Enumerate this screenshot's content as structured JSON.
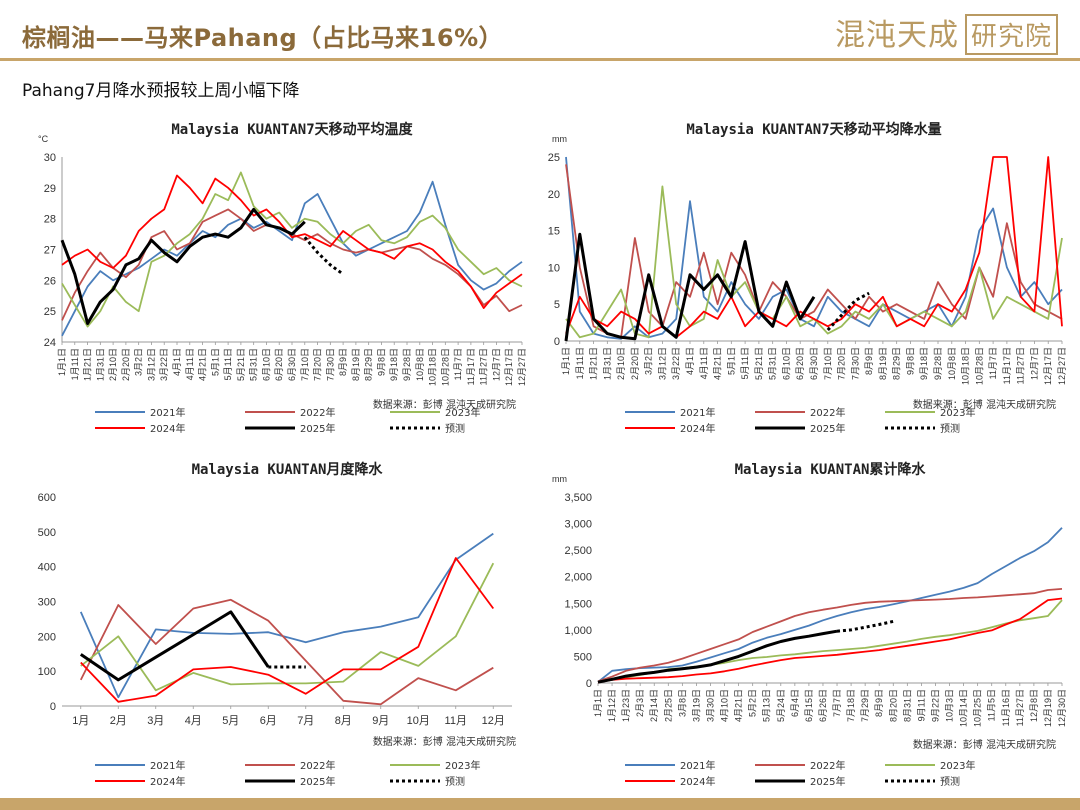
{
  "header": {
    "title": "棕榈油——马来Pahang（占比马来16%）",
    "logo_text": "混沌天成",
    "logo_box": "研究院",
    "subtitle": "Pahang7月降水预报较上周小幅下降"
  },
  "colors": {
    "2021年": "#4a7ebb",
    "2022年": "#c0504d",
    "2023年": "#9bbb59",
    "2024年": "#ff0000",
    "2025年": "#000000",
    "预测": "#000000",
    "gold": "#c8a56a"
  },
  "chart_data": [
    {
      "id": "temp",
      "type": "line",
      "title": "Malaysia KUANTAN7天移动平均温度",
      "unit_label": "°C",
      "ylim": [
        24,
        30
      ],
      "yticks": [
        24,
        25,
        26,
        27,
        28,
        29,
        30
      ],
      "x_ticks": [
        "1月1日",
        "1月11日",
        "1月21日",
        "1月31日",
        "2月10日",
        "2月20日",
        "3月2日",
        "3月12日",
        "3月22日",
        "4月1日",
        "4月11日",
        "4月21日",
        "5月1日",
        "5月11日",
        "5月21日",
        "5月31日",
        "6月10日",
        "6月20日",
        "6月30日",
        "7月10日",
        "7月20日",
        "7月30日",
        "8月9日",
        "8月19日",
        "8月29日",
        "9月8日",
        "9月18日",
        "9月28日",
        "10月8日",
        "10月18日",
        "10月28日",
        "11月7日",
        "11月17日",
        "11月27日",
        "12月7日",
        "12月17日",
        "12月27日"
      ],
      "source": "数据来源：彭博  混沌天成研究院",
      "series": [
        {
          "name": "2021年",
          "values": [
            24.2,
            25.0,
            25.8,
            26.3,
            26.0,
            26.2,
            26.4,
            26.7,
            27.0,
            26.8,
            27.2,
            27.6,
            27.4,
            27.8,
            28.0,
            27.7,
            27.9,
            27.6,
            27.3,
            28.5,
            28.8,
            28.0,
            27.2,
            26.8,
            27.0,
            27.2,
            27.4,
            27.6,
            28.2,
            29.2,
            27.8,
            26.5,
            26.0,
            25.7,
            25.9,
            26.3,
            26.6
          ]
        },
        {
          "name": "2022年",
          "values": [
            24.7,
            25.6,
            26.3,
            26.9,
            26.4,
            26.1,
            26.5,
            27.4,
            27.6,
            27.0,
            27.2,
            27.9,
            28.1,
            28.3,
            28.0,
            27.6,
            27.8,
            27.7,
            27.5,
            27.3,
            27.5,
            27.2,
            27.0,
            26.9,
            27.0,
            26.9,
            27.0,
            27.1,
            27.0,
            26.7,
            26.5,
            26.2,
            25.8,
            25.2,
            25.5,
            25.0,
            25.2
          ]
        },
        {
          "name": "2023年",
          "values": [
            25.9,
            25.2,
            24.5,
            25.0,
            25.8,
            25.3,
            25.0,
            26.6,
            26.8,
            27.2,
            27.5,
            28.0,
            28.8,
            28.6,
            29.5,
            28.4,
            28.0,
            28.2,
            27.7,
            28.0,
            27.9,
            27.5,
            27.2,
            27.6,
            27.8,
            27.3,
            27.2,
            27.4,
            27.9,
            28.1,
            27.7,
            27.0,
            26.6,
            26.2,
            26.4,
            26.0,
            25.8
          ]
        },
        {
          "name": "2024年",
          "values": [
            26.5,
            26.8,
            27.0,
            26.6,
            26.4,
            26.8,
            27.6,
            28.0,
            28.3,
            29.4,
            29.0,
            28.5,
            29.3,
            29.0,
            28.6,
            28.1,
            28.3,
            27.9,
            27.4,
            27.5,
            27.3,
            27.1,
            27.6,
            27.3,
            27.0,
            26.9,
            26.7,
            27.1,
            27.2,
            27.0,
            26.6,
            26.3,
            25.8,
            25.1,
            25.6,
            25.9,
            26.2
          ]
        },
        {
          "name": "2025年",
          "values": [
            27.3,
            26.2,
            24.6,
            25.3,
            25.7,
            26.5,
            26.7,
            27.3,
            26.9,
            26.6,
            27.1,
            27.4,
            27.5,
            27.4,
            27.7,
            28.3,
            27.8,
            27.7,
            27.5,
            27.9,
            null,
            null,
            null,
            null,
            null,
            null,
            null,
            null,
            null,
            null,
            null,
            null,
            null,
            null,
            null,
            null,
            null
          ]
        },
        {
          "name": "预测",
          "dashed": true,
          "values": [
            null,
            null,
            null,
            null,
            null,
            null,
            null,
            null,
            null,
            null,
            null,
            null,
            null,
            null,
            null,
            null,
            null,
            null,
            null,
            27.4,
            26.9,
            26.5,
            26.2,
            null,
            null,
            null,
            null,
            null,
            null,
            null,
            null,
            null,
            null,
            null,
            null,
            null,
            null
          ]
        }
      ]
    },
    {
      "id": "rain7",
      "type": "line",
      "title": "Malaysia KUANTAN7天移动平均降水量",
      "unit_label": "mm",
      "ylim": [
        0,
        25
      ],
      "yticks": [
        0,
        5,
        10,
        15,
        20,
        25
      ],
      "x_ticks": [
        "1月1日",
        "1月11日",
        "1月21日",
        "1月31日",
        "2月10日",
        "2月20日",
        "3月2日",
        "3月12日",
        "3月22日",
        "4月1日",
        "4月11日",
        "4月21日",
        "5月1日",
        "5月11日",
        "5月21日",
        "5月31日",
        "6月10日",
        "6月20日",
        "6月30日",
        "7月10日",
        "7月20日",
        "7月30日",
        "8月9日",
        "8月19日",
        "8月29日",
        "9月8日",
        "9月18日",
        "9月28日",
        "10月8日",
        "10月18日",
        "10月28日",
        "11月7日",
        "11月17日",
        "11月27日",
        "12月7日",
        "12月17日",
        "12月27日"
      ],
      "source": "数据来源：彭博  混沌天成研究院",
      "series": [
        {
          "name": "2021年",
          "values": [
            25,
            4,
            1,
            0.5,
            0.3,
            2,
            0.5,
            1,
            3,
            19,
            6,
            4,
            8,
            5,
            3,
            6,
            7,
            3,
            2,
            6,
            4,
            3,
            2,
            5,
            4,
            3,
            4,
            5,
            2,
            6,
            15,
            18,
            10,
            6,
            8,
            5,
            7
          ]
        },
        {
          "name": "2022年",
          "values": [
            24,
            10,
            2,
            1,
            0.5,
            14,
            4,
            2,
            8,
            6,
            12,
            5,
            12,
            9,
            4,
            8,
            6,
            3,
            4,
            7,
            5,
            3,
            6,
            4,
            5,
            4,
            3,
            8,
            5,
            3,
            10,
            6,
            16,
            8,
            5,
            4,
            3
          ]
        },
        {
          "name": "2023年",
          "values": [
            3,
            0.5,
            1,
            4,
            7,
            1,
            0.5,
            21,
            5,
            2,
            3,
            11,
            6,
            8,
            4,
            3,
            6,
            2,
            3,
            1,
            2,
            4,
            3,
            5,
            2,
            3,
            4,
            3,
            2,
            4,
            10,
            3,
            6,
            5,
            4,
            3,
            14
          ]
        },
        {
          "name": "2024年",
          "values": [
            1,
            6,
            3,
            2,
            4,
            3,
            1,
            2,
            0.5,
            2,
            4,
            3,
            6,
            2,
            4,
            3,
            2,
            4,
            3,
            2,
            3,
            5,
            4,
            6,
            2,
            3,
            2,
            5,
            4,
            7,
            12,
            25,
            25,
            6,
            4,
            25,
            2
          ]
        },
        {
          "name": "2025年",
          "values": [
            0,
            14.5,
            3,
            1,
            0.5,
            0.3,
            9,
            2,
            0.5,
            9,
            7,
            9,
            6,
            13.5,
            4,
            2,
            8,
            3,
            6,
            null,
            null,
            null,
            null,
            null,
            null,
            null,
            null,
            null,
            null,
            null,
            null,
            null,
            null,
            null,
            null,
            null,
            null
          ]
        },
        {
          "name": "预测",
          "dashed": true,
          "values": [
            null,
            null,
            null,
            null,
            null,
            null,
            null,
            null,
            null,
            null,
            null,
            null,
            null,
            null,
            null,
            null,
            null,
            null,
            null,
            1.5,
            3.5,
            5.5,
            6.5,
            null,
            null,
            null,
            null,
            null,
            null,
            null,
            null,
            null,
            null,
            null,
            null,
            null,
            null
          ]
        }
      ]
    },
    {
      "id": "monthly",
      "type": "line",
      "title": "Malaysia KUANTAN月度降水",
      "ylim": [
        0,
        600
      ],
      "yticks": [
        0,
        100,
        200,
        300,
        400,
        500,
        600
      ],
      "x_ticks": [
        "1月",
        "2月",
        "3月",
        "4月",
        "5月",
        "6月",
        "7月",
        "8月",
        "9月",
        "10月",
        "11月",
        "12月"
      ],
      "source": "数据来源：彭博  混沌天成研究院",
      "series": [
        {
          "name": "2021年",
          "values": [
            270,
            25,
            220,
            210,
            207,
            212,
            183,
            212,
            228,
            255,
            420,
            495
          ]
        },
        {
          "name": "2022年",
          "values": [
            75,
            290,
            178,
            280,
            305,
            245,
            130,
            15,
            5,
            80,
            45,
            110
          ]
        },
        {
          "name": "2023年",
          "values": [
            115,
            200,
            45,
            95,
            62,
            65,
            65,
            70,
            155,
            115,
            200,
            410
          ]
        },
        {
          "name": "2024年",
          "values": [
            125,
            12,
            30,
            105,
            112,
            90,
            35,
            105,
            105,
            170,
            425,
            280
          ]
        },
        {
          "name": "2025年",
          "values": [
            148,
            75,
            140,
            205,
            270,
            112,
            null,
            null,
            null,
            null,
            null,
            null
          ]
        },
        {
          "name": "预测",
          "dashed": true,
          "values": [
            null,
            null,
            null,
            null,
            null,
            112,
            112,
            null,
            null,
            null,
            null,
            null
          ]
        }
      ]
    },
    {
      "id": "cumulative",
      "type": "line",
      "title": "Malaysia KUANTAN累计降水",
      "unit_label": "mm",
      "ylim": [
        0,
        3500
      ],
      "yticks": [
        0,
        500,
        1000,
        1500,
        2000,
        2500,
        3000,
        3500
      ],
      "ytick_labels": [
        "0",
        "500",
        "1,000",
        "1,500",
        "2,000",
        "2,500",
        "3,000",
        "3,500"
      ],
      "x_ticks": [
        "1月1日",
        "1月12日",
        "1月23日",
        "2月3日",
        "2月14日",
        "2月25日",
        "3月8日",
        "3月19日",
        "3月30日",
        "4月10日",
        "4月21日",
        "5月2日",
        "5月13日",
        "5月24日",
        "6月4日",
        "6月15日",
        "6月26日",
        "7月7日",
        "7月18日",
        "7月29日",
        "8月9日",
        "8月20日",
        "8月31日",
        "9月11日",
        "9月22日",
        "10月3日",
        "10月14日",
        "10月25日",
        "11月5日",
        "11月16日",
        "11月27日",
        "12月8日",
        "12月19日",
        "12月30日"
      ],
      "source": "数据来源：彭博  混沌天成研究院",
      "series": [
        {
          "name": "2021年",
          "values": [
            20,
            230,
            260,
            280,
            290,
            300,
            330,
            400,
            480,
            560,
            640,
            760,
            850,
            920,
            1000,
            1080,
            1180,
            1260,
            1330,
            1390,
            1430,
            1480,
            1540,
            1600,
            1660,
            1720,
            1790,
            1880,
            2050,
            2200,
            2350,
            2480,
            2650,
            2920
          ]
        },
        {
          "name": "2022年",
          "values": [
            30,
            120,
            230,
            290,
            330,
            380,
            460,
            550,
            640,
            730,
            820,
            960,
            1060,
            1160,
            1260,
            1330,
            1380,
            1420,
            1470,
            1510,
            1530,
            1540,
            1550,
            1560,
            1570,
            1580,
            1600,
            1610,
            1630,
            1650,
            1670,
            1690,
            1750,
            1770
          ]
        },
        {
          "name": "2023年",
          "values": [
            20,
            60,
            110,
            150,
            200,
            260,
            280,
            310,
            340,
            380,
            430,
            470,
            490,
            520,
            540,
            570,
            600,
            620,
            640,
            660,
            700,
            740,
            780,
            830,
            870,
            900,
            940,
            980,
            1050,
            1120,
            1180,
            1220,
            1260,
            1560
          ]
        },
        {
          "name": "2024年",
          "values": [
            10,
            60,
            80,
            90,
            100,
            110,
            130,
            160,
            180,
            220,
            270,
            330,
            380,
            430,
            470,
            490,
            510,
            530,
            560,
            590,
            620,
            660,
            700,
            740,
            780,
            820,
            880,
            940,
            990,
            1100,
            1200,
            1380,
            1560,
            1590
          ]
        },
        {
          "name": "2025年",
          "values": [
            15,
            70,
            130,
            170,
            200,
            240,
            270,
            300,
            340,
            420,
            500,
            600,
            700,
            780,
            840,
            880,
            930,
            975,
            null,
            null,
            null,
            null,
            null,
            null,
            null,
            null,
            null,
            null,
            null,
            null,
            null,
            null,
            null,
            null
          ]
        },
        {
          "name": "预测",
          "dashed": true,
          "values": [
            null,
            null,
            null,
            null,
            null,
            null,
            null,
            null,
            null,
            null,
            null,
            null,
            null,
            null,
            null,
            null,
            null,
            975,
            1000,
            1050,
            1100,
            1160,
            null,
            null,
            null,
            null,
            null,
            null,
            null,
            null,
            null,
            null,
            null,
            null
          ]
        }
      ]
    }
  ]
}
